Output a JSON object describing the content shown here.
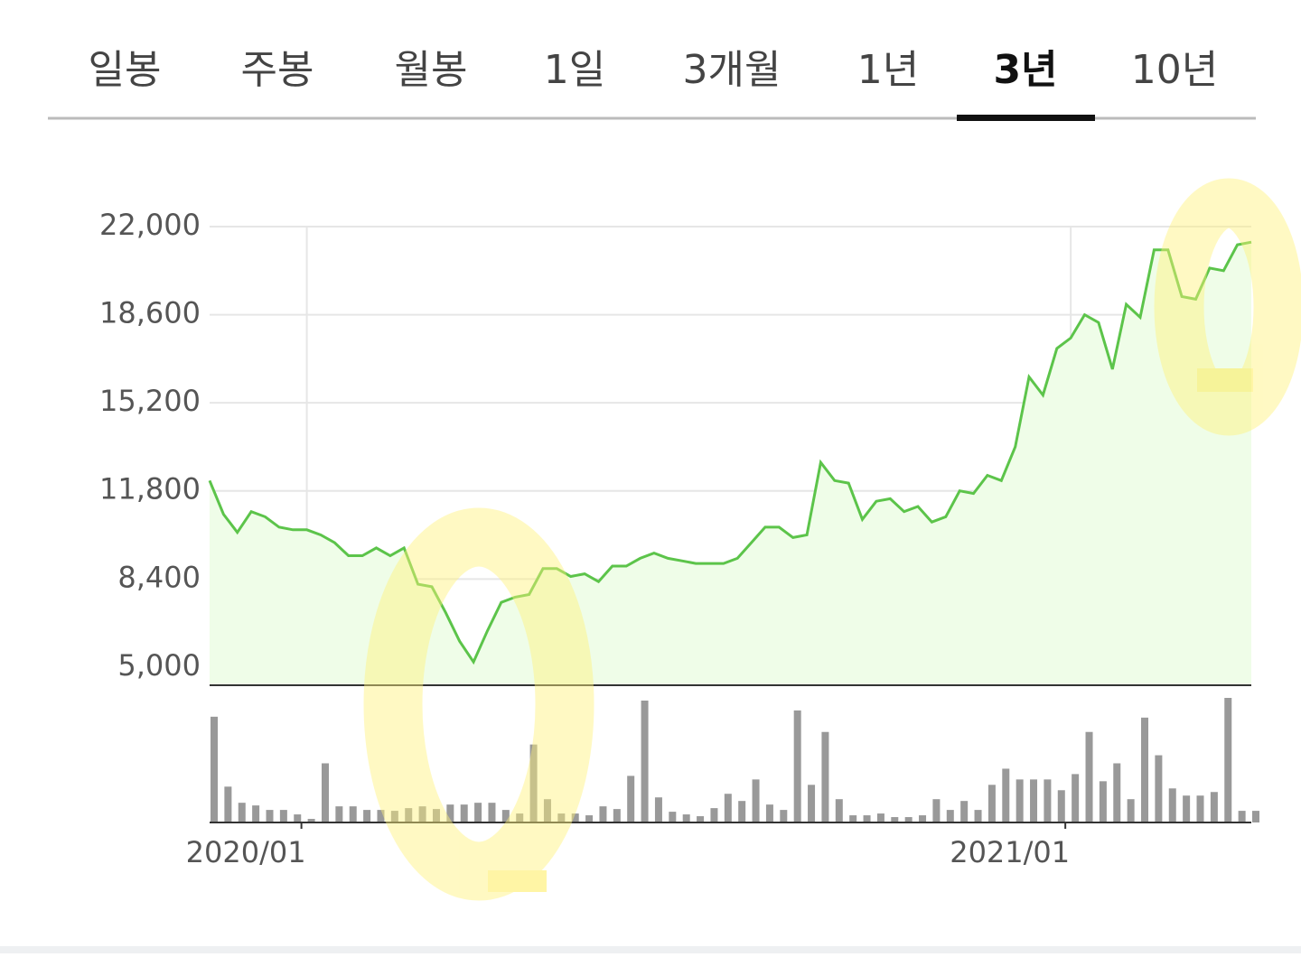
{
  "tabs": {
    "items": [
      "일봉",
      "주봉",
      "월봉",
      "1일",
      "3개월",
      "1년",
      "3년",
      "10년"
    ],
    "active": 6
  },
  "chart_data": {
    "type": "line",
    "ylim": [
      4300,
      22000
    ],
    "yticks": [
      {
        "value": 5000,
        "label": "5,000"
      },
      {
        "value": 8400,
        "label": "8,400"
      },
      {
        "value": 11800,
        "label": "11,800"
      },
      {
        "value": 15200,
        "label": "15,200"
      },
      {
        "value": 18600,
        "label": "18,600"
      },
      {
        "value": 22000,
        "label": "22,000"
      }
    ],
    "grid": true,
    "categories": [
      null,
      null,
      null,
      null,
      null,
      null,
      null,
      "2020/01",
      null,
      null,
      null,
      null,
      null,
      null,
      null,
      null,
      null,
      null,
      null,
      null,
      null,
      null,
      null,
      null,
      null,
      null,
      null,
      null,
      null,
      null,
      null,
      null,
      null,
      null,
      null,
      null,
      null,
      null,
      null,
      null,
      null,
      null,
      null,
      null,
      null,
      null,
      null,
      null,
      null,
      null,
      null,
      null,
      null,
      null,
      null,
      null,
      null,
      null,
      null,
      null,
      null,
      null,
      "2021/01",
      null,
      null,
      null,
      null,
      null,
      null,
      null,
      null,
      null,
      null,
      null,
      null,
      null
    ],
    "series": [
      {
        "color": "#5cc44a",
        "fill": "#effde8",
        "values": [
          12200,
          10900,
          10200,
          11000,
          10800,
          10400,
          10300,
          10300,
          10100,
          9800,
          9300,
          9300,
          9600,
          9300,
          9600,
          8200,
          8100,
          7100,
          6000,
          5200,
          6400,
          7500,
          7700,
          7800,
          8800,
          8800,
          8500,
          8600,
          8300,
          8900,
          8900,
          9200,
          9400,
          9200,
          9100,
          9000,
          9000,
          9000,
          9200,
          9800,
          10400,
          10400,
          10000,
          10100,
          12900,
          12200,
          12100,
          10700,
          11400,
          11500,
          11000,
          11200,
          10600,
          10800,
          11800,
          11700,
          12400,
          12200,
          13500,
          16200,
          15500,
          17300,
          17700,
          18600,
          18300,
          16500,
          19000,
          18500,
          21100,
          21100,
          19300,
          19200,
          20400,
          20300,
          21300,
          21400
        ]
      }
    ],
    "volume": {
      "color": "#999999",
      "values": [
        118,
        40,
        22,
        19,
        14,
        14,
        9,
        4,
        66,
        18,
        18,
        14,
        14,
        13,
        16,
        18,
        15,
        20,
        20,
        22,
        22,
        14,
        10,
        87,
        26,
        10,
        10,
        8,
        18,
        15,
        52,
        136,
        28,
        12,
        9,
        7,
        16,
        32,
        24,
        48,
        20,
        14,
        125,
        42,
        101,
        26,
        8,
        8,
        10,
        6,
        6,
        8,
        26,
        14,
        24,
        14,
        42,
        60,
        48,
        48,
        48,
        36,
        54,
        101,
        46,
        66,
        26,
        117,
        75,
        38,
        30,
        30,
        34,
        139,
        13,
        13
      ]
    }
  }
}
